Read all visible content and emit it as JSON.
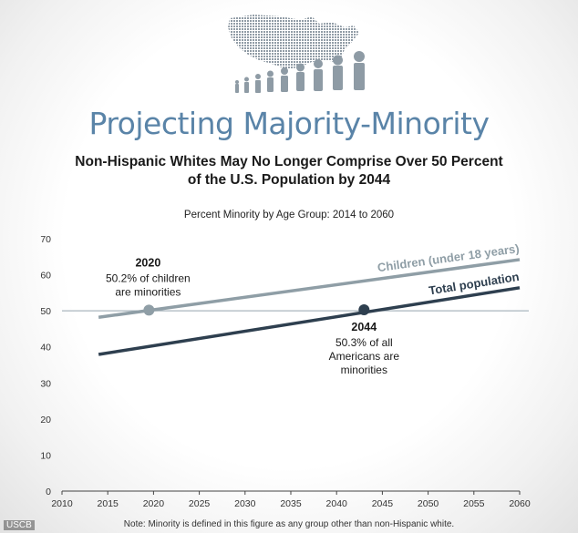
{
  "header": {
    "title": "Projecting Majority-Minority",
    "subtitle_line1": "Non-Hispanic Whites May No Longer Comprise Over 50 Percent",
    "subtitle_line2": "of the U.S. Population by 2044"
  },
  "chart_data": {
    "type": "line",
    "title": "Percent Minority by Age Group: 2014 to 2060",
    "xlim": [
      2010,
      2060
    ],
    "ylim": [
      0,
      70
    ],
    "x_ticks": [
      2010,
      2015,
      2020,
      2025,
      2030,
      2035,
      2040,
      2045,
      2050,
      2055,
      2060
    ],
    "y_ticks": [
      0,
      10,
      20,
      30,
      40,
      50,
      60,
      70
    ],
    "reference_line": 50,
    "grid": false,
    "series": [
      {
        "name": "Children (under 18 years)",
        "color": "#8f9ea6",
        "x": [
          2014,
          2060
        ],
        "y": [
          48.2,
          64.2
        ]
      },
      {
        "name": "Total population",
        "color": "#2e3f4f",
        "x": [
          2014,
          2060
        ],
        "y": [
          37.9,
          56.4
        ]
      }
    ],
    "annotations": [
      {
        "year_label": "2020",
        "lines": [
          "50.2% of children",
          "are minorities"
        ],
        "x": 2019.5,
        "y": 50.2,
        "color": "#8f9ea6"
      },
      {
        "year_label": "2044",
        "lines": [
          "50.3% of all",
          "Americans are",
          "minorities"
        ],
        "x": 2043,
        "y": 50.3,
        "color": "#2e3f4f"
      }
    ]
  },
  "footer": {
    "credit": "USCB",
    "note": "Note: Minority is defined in this figure as any group other than non-Hispanic white."
  }
}
